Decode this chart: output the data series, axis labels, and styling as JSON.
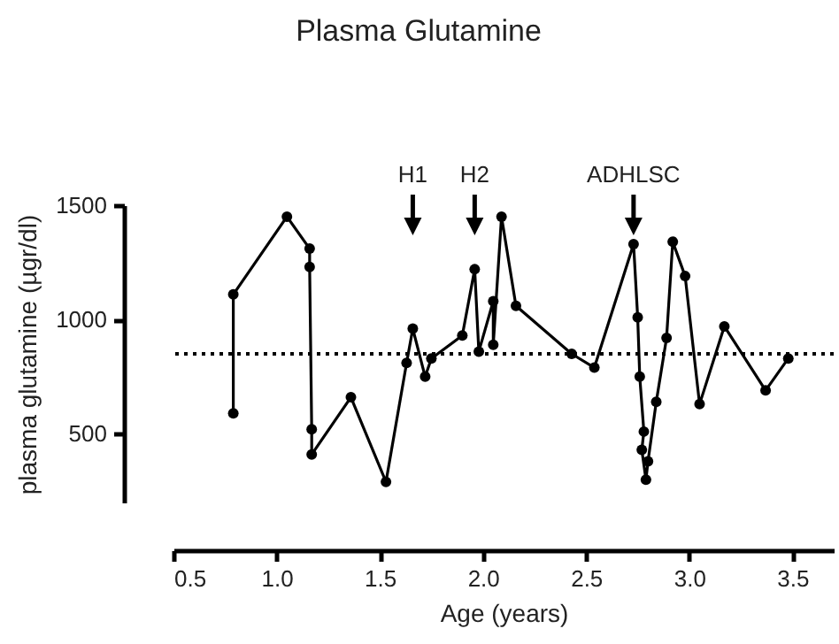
{
  "chart_data": {
    "type": "line",
    "title": "Plasma Glutamine",
    "xlabel": "Age (years)",
    "ylabel": "plasma glutamine (µgr/dl)",
    "x": [
      0.79,
      0.79,
      1.05,
      1.16,
      1.16,
      1.17,
      1.17,
      1.36,
      1.53,
      1.63,
      1.66,
      1.72,
      1.75,
      1.9,
      1.96,
      1.98,
      2.05,
      2.05,
      2.09,
      2.16,
      2.43,
      2.54,
      2.73,
      2.75,
      2.76,
      2.78,
      2.77,
      2.79,
      2.8,
      2.84,
      2.89,
      2.92,
      2.98,
      3.05,
      3.17,
      3.37,
      3.48
    ],
    "series": [
      {
        "color": "#000000",
        "values": [
          590,
          1110,
          1450,
          1310,
          1230,
          520,
          410,
          660,
          290,
          810,
          960,
          750,
          830,
          930,
          1220,
          860,
          1080,
          890,
          1450,
          1060,
          850,
          790,
          1330,
          1010,
          750,
          510,
          430,
          300,
          380,
          640,
          920,
          1340,
          1190,
          630,
          970,
          690,
          830
        ]
      }
    ],
    "xlim": [
      0.5,
      3.7
    ],
    "xticks": [
      0.5,
      {
        "value": 1,
        "label": "1.0"
      },
      1.5,
      {
        "value": 2,
        "label": "2.0"
      },
      2.5,
      {
        "value": 3,
        "label": "3.0"
      },
      3.5
    ],
    "ylim": [
      200,
      1500
    ],
    "yticks": [
      500,
      {
        "value": 1000,
        "label": "1000"
      },
      {
        "value": 1500,
        "label": "1500"
      }
    ],
    "marker": "circle",
    "line_style": "solid",
    "grid": false,
    "ref_lines": [
      {
        "axis": "y",
        "value": 850,
        "line_style": "dotted"
      }
    ],
    "annotations": [
      {
        "text": "H1",
        "x": 1.66
      },
      {
        "text": "H2",
        "x": 1.96
      },
      {
        "text": "ADHLSC",
        "x": 2.73
      }
    ]
  }
}
